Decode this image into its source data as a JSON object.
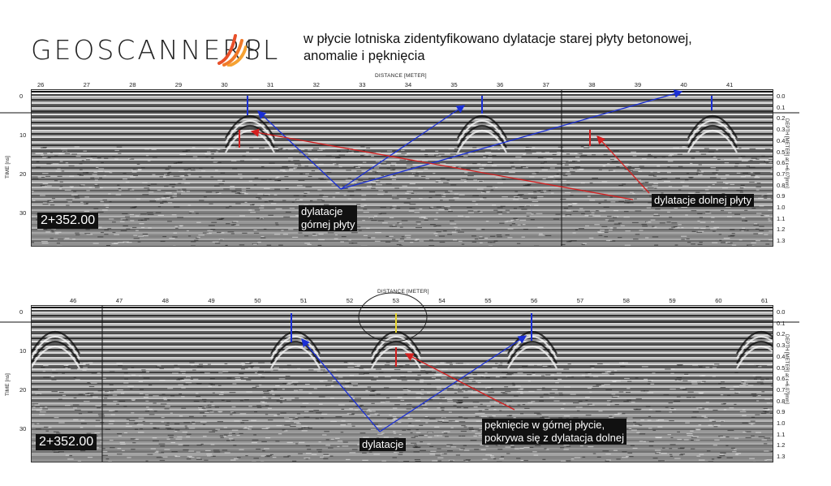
{
  "logo": {
    "text": "GEOSCANNERS",
    "suffix": "PL"
  },
  "headline": {
    "line1": "w płycie lotniska zidentyfikowano dylatacje starej płyty betonowej,",
    "line2": "anomalie i pęknięcia"
  },
  "panel_top": {
    "distance_title": "DISTANCE [METER]",
    "distance_ticks": [
      "26",
      "27",
      "28",
      "29",
      "30",
      "31",
      "32",
      "33",
      "34",
      "35",
      "36",
      "37",
      "38",
      "39",
      "40",
      "41"
    ],
    "time_label": "TIME [ns]",
    "time_ticks": [
      "0",
      "10",
      "20",
      "30"
    ],
    "depth_label": "DEPTH [METER] at ε=6.07[mm]",
    "depth_ticks": [
      "0.0",
      "0.1",
      "0.2",
      "0.3",
      "0.4",
      "0.5",
      "0.6",
      "0.7",
      "0.8",
      "0.9",
      "1.0",
      "1.1",
      "1.2",
      "1.3"
    ],
    "station": "2+352.00",
    "note_upper_line1": "dylatacje",
    "note_upper_line2": "górnej płyty",
    "note_lower": "dylatacje dolnej płyty",
    "markers": [
      "0",
      "0",
      "0",
      "0",
      "0"
    ]
  },
  "panel_bottom": {
    "distance_title": "DISTANCE [METER]",
    "distance_ticks": [
      "46",
      "47",
      "48",
      "49",
      "50",
      "51",
      "52",
      "53",
      "54",
      "55",
      "56",
      "57",
      "58",
      "59",
      "60",
      "61"
    ],
    "time_label": "TIME [ns]",
    "time_ticks": [
      "0",
      "10",
      "20",
      "30"
    ],
    "depth_label": "DEPTH [METER] at ε=6.07[mm]",
    "depth_ticks": [
      "0.0",
      "0.1",
      "0.2",
      "0.3",
      "0.4",
      "0.5",
      "0.6",
      "0.7",
      "0.8",
      "0.9",
      "1.0",
      "1.1",
      "1.2",
      "1.3"
    ],
    "station": "2+352.00",
    "note_dylatacje": "dylatacje",
    "note_crack_line1": "pęknięcie w górnej płycie,",
    "note_crack_line2": "pokrywa się z dylatacja dolnej",
    "markers": [
      "0",
      "1",
      "0",
      "0",
      "0",
      "0"
    ]
  },
  "colors": {
    "blue_arrow": "#1a2fd6",
    "red_arrow": "#d42020",
    "logo_accent": "#e8502a"
  }
}
